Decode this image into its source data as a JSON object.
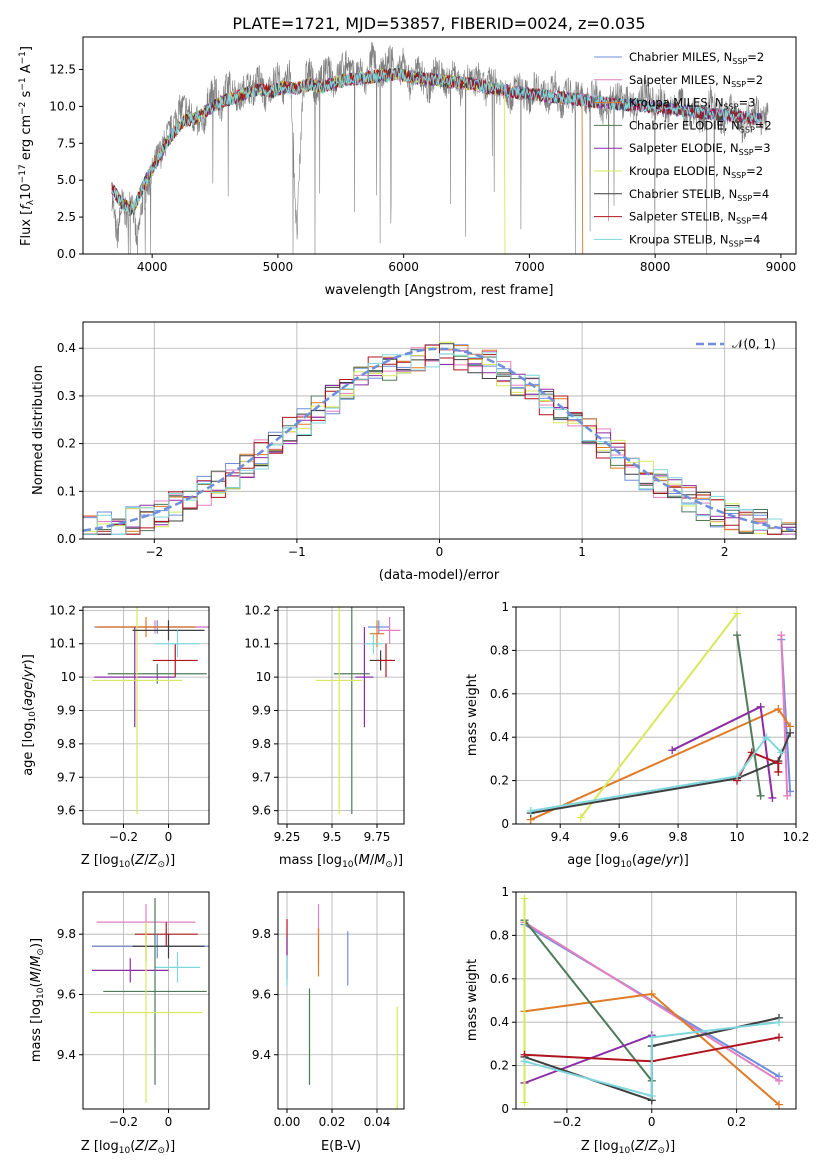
{
  "figure": {
    "title": "PLATE=1721, MJD=53857, FIBERID=0024, z=0.035",
    "colors": {
      "Chabrier MILES": "#6f8fdc",
      "Salpeter MILES": "#e37fc0",
      "Kroupa MILES": "#df7a25",
      "Chabrier ELODIE": "#4f7a5a",
      "Salpeter ELODIE": "#8c2da6",
      "Kroupa ELODIE": "#d7e85a",
      "Chabrier STELIB": "#3f3f3f",
      "Salpeter STELIB": "#b0141f",
      "Kroupa STELIB": "#7fd7dc"
    }
  },
  "chart_data": [
    {
      "id": "spectrum",
      "type": "line",
      "xlabel": "wavelength [Angstrom, rest frame]",
      "ylabel": "Flux [f_λ 10^-17 erg cm^-2 s^-1 A^-1]",
      "xlim": [
        3450,
        9120
      ],
      "ylim": [
        0,
        14.7
      ],
      "xticks": [
        4000,
        5000,
        6000,
        7000,
        8000,
        9000
      ],
      "yticks": [
        0.0,
        2.5,
        5.0,
        7.5,
        10.0,
        12.5
      ],
      "ytick_labels": [
        "0.0",
        "2.5",
        "5.0",
        "7.5",
        "10.0",
        "12.5"
      ],
      "grid": false,
      "legend": "upper-right",
      "observed_color": "#808080",
      "observed": {
        "x": [
          3680,
          3720,
          3760,
          3800,
          3840,
          3880,
          3920,
          3960,
          4000,
          4040,
          4080,
          4120,
          4160,
          4200,
          4250,
          4300,
          4350,
          4400,
          4450,
          4500,
          4550,
          4600,
          4650,
          4700,
          4750,
          4800,
          4850,
          4900,
          4950,
          5000,
          5050,
          5100,
          5150,
          5200,
          5250,
          5300,
          5350,
          5400,
          5450,
          5500,
          5550,
          5600,
          5650,
          5700,
          5750,
          5800,
          5850,
          5900,
          5950,
          6000,
          6050,
          6100,
          6150,
          6200,
          6250,
          6300,
          6350,
          6400,
          6450,
          6500,
          6550,
          6600,
          6650,
          6700,
          6750,
          6800,
          6850,
          6900,
          6950,
          7000,
          7050,
          7100,
          7150,
          7200,
          7250,
          7300,
          7350,
          7400,
          7450,
          7500,
          7550,
          7600,
          7650,
          7700,
          7750,
          7800,
          7850,
          7900,
          7950,
          8000,
          8050,
          8100,
          8150,
          8200,
          8250,
          8300,
          8350,
          8400,
          8450,
          8500,
          8550,
          8600,
          8650,
          8700,
          8750,
          8800,
          8850,
          8900
        ],
        "y": [
          4.0,
          1.0,
          3.5,
          2.5,
          4.0,
          0.5,
          3.5,
          4.5,
          5.5,
          6.5,
          7.0,
          8.0,
          8.5,
          9.5,
          10.0,
          9.5,
          9.0,
          8.5,
          10.5,
          11.0,
          10.0,
          11.5,
          11.0,
          10.5,
          11.5,
          11.0,
          12.0,
          10.5,
          11.5,
          12.0,
          11.0,
          12.5,
          1.0,
          11.5,
          12.5,
          11.0,
          12.0,
          12.5,
          11.5,
          12.5,
          13.0,
          12.0,
          12.5,
          11.5,
          13.5,
          12.0,
          12.5,
          13.5,
          12.0,
          13.0,
          11.5,
          12.5,
          12.0,
          11.0,
          12.5,
          12.0,
          11.5,
          12.5,
          11.0,
          12.0,
          11.5,
          12.0,
          11.0,
          12.0,
          11.0,
          11.5,
          10.5,
          11.5,
          11.0,
          10.5,
          11.5,
          11.0,
          10.5,
          11.5,
          10.0,
          11.0,
          10.5,
          11.0,
          10.0,
          11.0,
          10.5,
          9.5,
          10.5,
          11.0,
          10.0,
          10.5,
          9.5,
          11.0,
          10.5,
          10.0,
          10.5,
          9.5,
          10.0,
          10.5,
          9.5,
          10.0,
          9.0,
          9.5,
          10.5,
          9.5,
          9.0,
          10.0,
          9.5,
          8.5,
          9.5,
          10.0,
          9.0,
          9.5
        ]
      },
      "models": [
        {
          "name": "Chabrier MILES, N_SSP=2",
          "color": "#6f8fdc"
        },
        {
          "name": "Salpeter MILES, N_SSP=2",
          "color": "#e37fc0"
        },
        {
          "name": "Kroupa MILES, N_SSP=3",
          "color": "#df7a25"
        },
        {
          "name": "Chabrier ELODIE, N_SSP=2",
          "color": "#4f7a5a"
        },
        {
          "name": "Salpeter ELODIE, N_SSP=3",
          "color": "#8c2da6"
        },
        {
          "name": "Kroupa ELODIE, N_SSP=2",
          "color": "#d7e85a"
        },
        {
          "name": "Chabrier STELIB, N_SSP=4",
          "color": "#3f3f3f"
        },
        {
          "name": "Salpeter STELIB, N_SSP=4",
          "color": "#b0141f"
        },
        {
          "name": "Kroupa STELIB, N_SSP=4",
          "color": "#7fd7dc"
        }
      ],
      "model_curve": {
        "x": [
          3680,
          3750,
          3850,
          3950,
          4050,
          4150,
          4250,
          4350,
          4450,
          4550,
          4650,
          4750,
          4850,
          4950,
          5050,
          5150,
          5250,
          5350,
          5450,
          5550,
          5650,
          5750,
          5850,
          5950,
          6050,
          6150,
          6250,
          6350,
          6450,
          6550,
          6650,
          6750,
          6850,
          6950,
          7050,
          7150,
          7250,
          7350,
          7450,
          7550,
          7650,
          7750,
          7850,
          7950,
          8050,
          8150,
          8250,
          8350,
          8450,
          8550,
          8650,
          8750,
          8850
        ],
        "y": [
          4.5,
          3.5,
          3.0,
          5.0,
          6.5,
          8.0,
          9.0,
          9.2,
          9.8,
          10.3,
          10.6,
          10.9,
          11.2,
          11.0,
          11.3,
          11.2,
          11.5,
          11.3,
          11.6,
          11.8,
          11.9,
          12.0,
          12.1,
          12.2,
          12.0,
          11.9,
          11.8,
          11.7,
          11.6,
          11.5,
          11.3,
          11.2,
          11.0,
          10.9,
          10.8,
          10.7,
          10.6,
          10.5,
          10.4,
          10.3,
          10.2,
          10.1,
          10.1,
          10.0,
          9.9,
          9.8,
          9.7,
          9.6,
          9.5,
          9.4,
          9.3,
          9.2,
          9.1
        ]
      },
      "model_cutoffs": [
        {
          "color": "#df7a25",
          "x": 7420
        },
        {
          "color": "#d7e85a",
          "x": 6800
        }
      ]
    },
    {
      "id": "residuals",
      "type": "histogram",
      "xlabel": "(data-model)/error",
      "ylabel": "Normed distribution",
      "xlim": [
        -2.5,
        2.5
      ],
      "ylim": [
        0,
        0.455
      ],
      "xticks": [
        -2,
        -1,
        0,
        1,
        2
      ],
      "yticks": [
        0.0,
        0.1,
        0.2,
        0.3,
        0.4
      ],
      "ytick_labels": [
        "0.0",
        "0.1",
        "0.2",
        "0.3",
        "0.4"
      ],
      "grid": true,
      "legend": "upper-right",
      "gaussian": {
        "label": "𝒩(0, 1)",
        "color": "#6f8fdc"
      },
      "bin_width": 0.1
    },
    {
      "id": "age-vs-Z",
      "type": "errorbar",
      "xlabel": "Z [log10(Z/Z⊙)]",
      "ylabel": "age  [log10(age/yr)]",
      "xlim": [
        -0.38,
        0.18
      ],
      "ylim": [
        9.56,
        10.21
      ],
      "xticks": [
        -0.2,
        0.0
      ],
      "yticks": [
        9.6,
        9.7,
        9.8,
        9.9,
        10.0,
        10.1,
        10.2
      ],
      "grid": true,
      "points": [
        {
          "color": "#6f8fdc",
          "x": -0.05,
          "xerr": 0.28,
          "y": 10.15,
          "yerr": 0.02
        },
        {
          "color": "#e37fc0",
          "x": -0.06,
          "xerr": 0.26,
          "y": 10.15,
          "yerr": 0.02
        },
        {
          "color": "#df7a25",
          "x": -0.1,
          "xerr": 0.22,
          "y": 10.15,
          "yerr": 0.03
        },
        {
          "color": "#4f7a5a",
          "x": -0.05,
          "xerr": 0.22,
          "y": 10.01,
          "yerr": 0.03
        },
        {
          "color": "#8c2da6",
          "x": -0.15,
          "xerr": 0.18,
          "y": 10.0,
          "yerr": 0.15
        },
        {
          "color": "#d7e85a",
          "x": -0.14,
          "xerr": 0.2,
          "y": 9.99,
          "yerr": 0.4
        },
        {
          "color": "#3f3f3f",
          "x": 0.0,
          "xerr": 0.16,
          "y": 10.14,
          "yerr": 0.03
        },
        {
          "color": "#b0141f",
          "x": 0.03,
          "xerr": 0.1,
          "y": 10.05,
          "yerr": 0.05
        },
        {
          "color": "#7fd7dc",
          "x": 0.04,
          "xerr": 0.1,
          "y": 10.1,
          "yerr": 0.04
        }
      ]
    },
    {
      "id": "age-vs-mass",
      "type": "errorbar",
      "xlabel": "mass [log10(M/M⊙)]",
      "ylabel": "",
      "xlim": [
        9.2,
        9.9
      ],
      "ylim": [
        9.56,
        10.21
      ],
      "xticks": [
        9.25,
        9.5,
        9.75
      ],
      "yticks": [
        9.6,
        9.7,
        9.8,
        9.9,
        10.0,
        10.1,
        10.2
      ],
      "grid": true,
      "points": [
        {
          "color": "#6f8fdc",
          "x": 9.76,
          "xerr": 0.06,
          "y": 10.15,
          "yerr": 0.02
        },
        {
          "color": "#e37fc0",
          "x": 9.82,
          "xerr": 0.06,
          "y": 10.14,
          "yerr": 0.04
        },
        {
          "color": "#df7a25",
          "x": 9.75,
          "xerr": 0.04,
          "y": 10.13,
          "yerr": 0.04
        },
        {
          "color": "#4f7a5a",
          "x": 9.61,
          "xerr": 0.1,
          "y": 10.01,
          "yerr": 0.42
        },
        {
          "color": "#8c2da6",
          "x": 9.68,
          "xerr": 0.05,
          "y": 10.0,
          "yerr": 0.15
        },
        {
          "color": "#d7e85a",
          "x": 9.54,
          "xerr": 0.13,
          "y": 9.99,
          "yerr": 0.4
        },
        {
          "color": "#3f3f3f",
          "x": 9.77,
          "xerr": 0.06,
          "y": 10.05,
          "yerr": 0.03
        },
        {
          "color": "#b0141f",
          "x": 9.8,
          "xerr": 0.05,
          "y": 10.05,
          "yerr": 0.05
        },
        {
          "color": "#7fd7dc",
          "x": 9.73,
          "xerr": 0.05,
          "y": 10.1,
          "yerr": 0.03
        }
      ]
    },
    {
      "id": "weight-vs-age",
      "type": "line",
      "xlabel": "age  [log10(age/yr)]",
      "ylabel": "mass weight",
      "xlim": [
        9.25,
        10.2
      ],
      "ylim": [
        0,
        1.0
      ],
      "xticks": [
        9.4,
        9.6,
        9.8,
        10.0,
        10.2
      ],
      "yticks": [
        0.0,
        0.2,
        0.4,
        0.6,
        0.8,
        1.0
      ],
      "grid": true,
      "series": [
        {
          "color": "#6f8fdc",
          "x": [
            10.15,
            10.18
          ],
          "y": [
            0.85,
            0.15
          ]
        },
        {
          "color": "#e37fc0",
          "x": [
            10.15,
            10.17
          ],
          "y": [
            0.87,
            0.13
          ]
        },
        {
          "color": "#df7a25",
          "x": [
            9.3,
            10.14,
            10.18
          ],
          "y": [
            0.02,
            0.53,
            0.45
          ]
        },
        {
          "color": "#4f7a5a",
          "x": [
            10.0,
            10.08
          ],
          "y": [
            0.87,
            0.13
          ]
        },
        {
          "color": "#8c2da6",
          "x": [
            9.78,
            10.08,
            10.12
          ],
          "y": [
            0.34,
            0.54,
            0.12
          ]
        },
        {
          "color": "#d7e85a",
          "x": [
            9.47,
            10.0
          ],
          "y": [
            0.03,
            0.97
          ]
        },
        {
          "color": "#3f3f3f",
          "x": [
            9.3,
            10.0,
            10.14,
            10.18
          ],
          "y": [
            0.05,
            0.21,
            0.29,
            0.42
          ]
        },
        {
          "color": "#b0141f",
          "x": [
            10.0,
            10.05,
            10.14,
            10.14
          ],
          "y": [
            0.2,
            0.33,
            0.28,
            0.24
          ]
        },
        {
          "color": "#7fd7dc",
          "x": [
            9.3,
            10.0,
            10.1,
            10.15
          ],
          "y": [
            0.06,
            0.22,
            0.4,
            0.33
          ]
        }
      ]
    },
    {
      "id": "mass-vs-Z",
      "type": "errorbar",
      "xlabel": "Z [log10(Z/Z⊙)]",
      "ylabel": "mass [log10(M/M⊙)]",
      "xlim": [
        -0.38,
        0.18
      ],
      "ylim": [
        9.22,
        9.94
      ],
      "xticks": [
        -0.2,
        0.0
      ],
      "yticks": [
        9.4,
        9.6,
        9.8
      ],
      "grid": true,
      "points": [
        {
          "color": "#e37fc0",
          "x": -0.1,
          "xerr": 0.22,
          "y": 9.84,
          "yerr": 0.06
        },
        {
          "color": "#b0141f",
          "x": -0.01,
          "xerr": 0.14,
          "y": 9.8,
          "yerr": 0.04
        },
        {
          "color": "#df7a25",
          "x": -0.1,
          "xerr": 0.24,
          "y": 9.76,
          "yerr": 0.05
        },
        {
          "color": "#6f8fdc",
          "x": -0.05,
          "xerr": 0.29,
          "y": 9.76,
          "yerr": 0.04
        },
        {
          "color": "#3f3f3f",
          "x": 0.0,
          "xerr": 0.16,
          "y": 9.76,
          "yerr": 0.04
        },
        {
          "color": "#7fd7dc",
          "x": 0.04,
          "xerr": 0.1,
          "y": 9.69,
          "yerr": 0.05
        },
        {
          "color": "#8c2da6",
          "x": -0.17,
          "xerr": 0.17,
          "y": 9.68,
          "yerr": 0.04
        },
        {
          "color": "#4f7a5a",
          "x": -0.06,
          "xerr": 0.23,
          "y": 9.61,
          "yerr": 0.31
        },
        {
          "color": "#d7e85a",
          "x": -0.1,
          "xerr": 0.25,
          "y": 9.54,
          "yerr": 0.3
        }
      ]
    },
    {
      "id": "mass-vs-EBV",
      "type": "errorbar",
      "xlabel": "E(B-V)",
      "ylabel": "",
      "xlim": [
        -0.004,
        0.052
      ],
      "ylim": [
        9.22,
        9.94
      ],
      "xticks": [
        0.0,
        0.02,
        0.04
      ],
      "xtick_labels": [
        "0.00",
        "0.02",
        "0.04"
      ],
      "yticks": [
        9.4,
        9.6,
        9.8
      ],
      "grid": true,
      "points": [
        {
          "color": "#b0141f",
          "x": 0.0,
          "yerr": 0.06,
          "y": 9.79
        },
        {
          "color": "#8c2da6",
          "x": 0.0,
          "yerr": 0.07,
          "y": 9.72
        },
        {
          "color": "#7fd7dc",
          "x": 0.0,
          "yerr": 0.05,
          "y": 9.68
        },
        {
          "color": "#e37fc0",
          "x": 0.014,
          "yerr": 0.1,
          "y": 9.8
        },
        {
          "color": "#df7a25",
          "x": 0.014,
          "yerr": 0.08,
          "y": 9.74
        },
        {
          "color": "#6f8fdc",
          "x": 0.027,
          "yerr": 0.09,
          "y": 9.72
        },
        {
          "color": "#4f7a5a",
          "x": 0.01,
          "yerr": 0.16,
          "y": 9.46
        },
        {
          "color": "#d7e85a",
          "x": 0.049,
          "yerr": 0.31,
          "y": 9.25
        }
      ]
    },
    {
      "id": "weight-vs-Z",
      "type": "line",
      "xlabel": "Z [log10(Z/Z⊙)]",
      "ylabel": "mass weight",
      "xlim": [
        -0.32,
        0.34
      ],
      "ylim": [
        0,
        1.0
      ],
      "xticks": [
        -0.2,
        0.0,
        0.2
      ],
      "yticks": [
        0.0,
        0.2,
        0.4,
        0.6,
        0.8,
        1.0
      ],
      "grid": true,
      "series": [
        {
          "color": "#6f8fdc",
          "x": [
            -0.3,
            0.3
          ],
          "y": [
            0.85,
            0.15
          ]
        },
        {
          "color": "#e37fc0",
          "x": [
            -0.3,
            0.3
          ],
          "y": [
            0.86,
            0.13
          ]
        },
        {
          "color": "#df7a25",
          "x": [
            -0.3,
            0.0,
            0.3
          ],
          "y": [
            0.45,
            0.53,
            0.02
          ]
        },
        {
          "color": "#4f7a5a",
          "x": [
            -0.3,
            0.0
          ],
          "y": [
            0.87,
            0.13
          ]
        },
        {
          "color": "#8c2da6",
          "x": [
            -0.3,
            0.0
          ],
          "y": [
            0.12,
            0.34
          ]
        },
        {
          "color": "#d7e85a",
          "x": [
            -0.3,
            -0.3
          ],
          "y": [
            0.03,
            0.97
          ]
        },
        {
          "color": "#3f3f3f",
          "x": [
            -0.3,
            0.0,
            0.0,
            0.3
          ],
          "y": [
            0.24,
            0.04,
            0.29,
            0.42
          ]
        },
        {
          "color": "#b0141f",
          "x": [
            -0.3,
            0.0,
            0.3
          ],
          "y": [
            0.25,
            0.22,
            0.33
          ]
        },
        {
          "color": "#7fd7dc",
          "x": [
            -0.3,
            0.0,
            0.0,
            0.3
          ],
          "y": [
            0.22,
            0.06,
            0.33,
            0.4
          ]
        }
      ]
    }
  ]
}
